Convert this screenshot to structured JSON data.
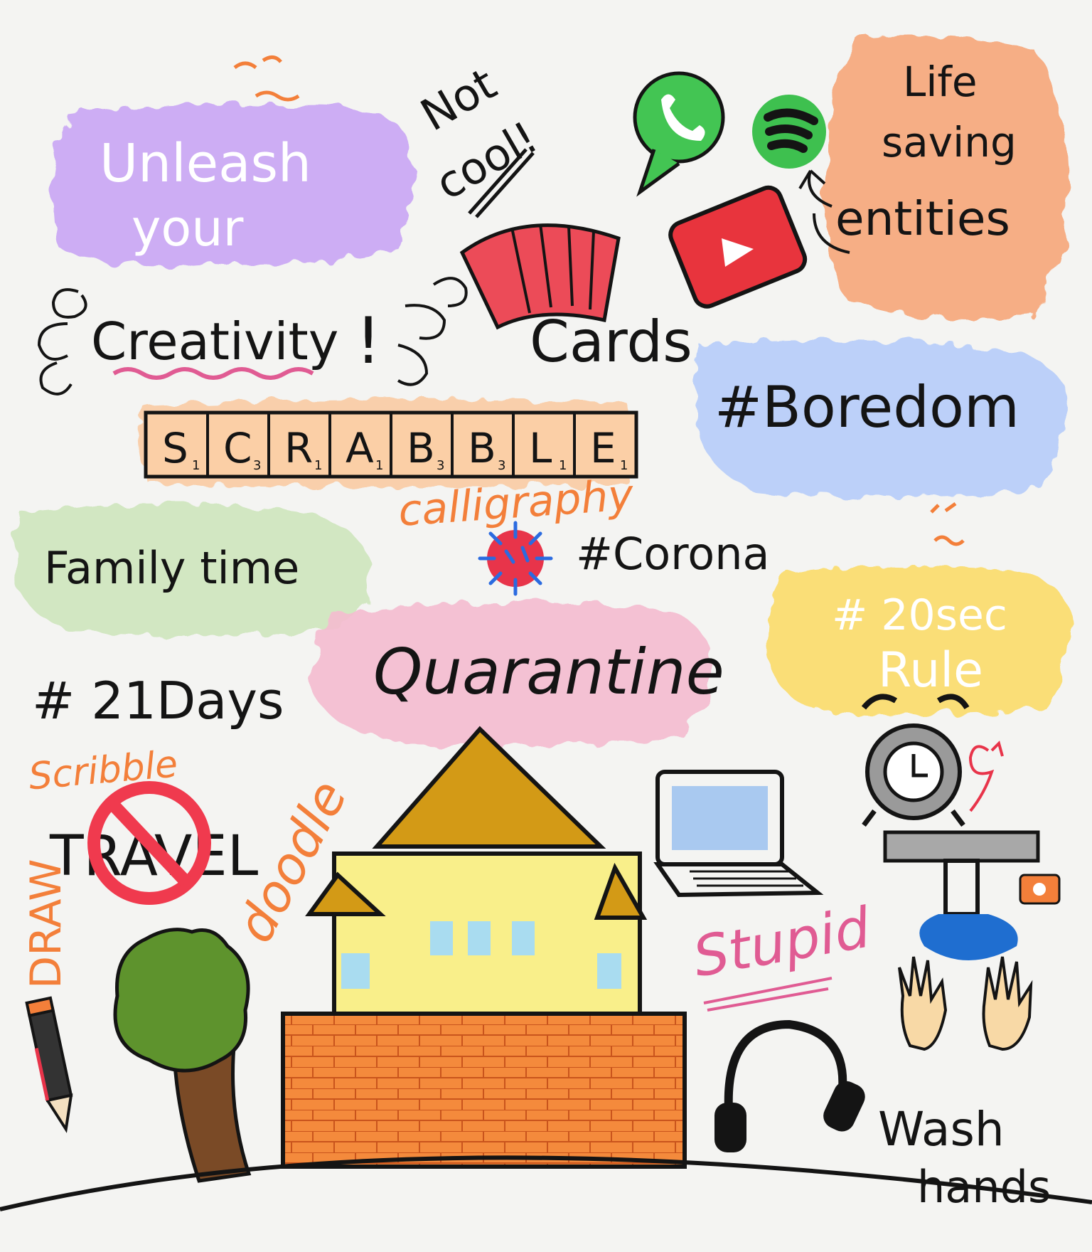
{
  "blobs": {
    "purple": "#c9a6f5",
    "orange": "#f7a77a",
    "blue": "#b6cdfa",
    "green": "#cfe6bd",
    "pink": "#f5bcd0",
    "yellow": "#fbdc6b"
  },
  "texts": {
    "unleash": "Unleash",
    "your": "your",
    "creativity": "Creativity",
    "exclaim": "!",
    "not": "Not",
    "cool": "cool!",
    "cards": "Cards",
    "life": "Life",
    "saving": "saving",
    "entities": "entities",
    "boredom": "#Boredom",
    "calligraphy": "calligraphy",
    "corona": "#Corona",
    "family": "Family time",
    "quarantine": "Quarantine",
    "sec20": "# 20sec",
    "rule": "Rule",
    "days21": "# 21Days",
    "scribble": "Scribble",
    "travel": "TRAVEL",
    "draw": "DRAW",
    "doodle": "doodle",
    "stupid": "Stupid",
    "wash": "Wash",
    "hands": "hands"
  },
  "scrabble": {
    "tiles": [
      {
        "letter": "S",
        "score": "1"
      },
      {
        "letter": "C",
        "score": "3"
      },
      {
        "letter": "R",
        "score": "1"
      },
      {
        "letter": "A",
        "score": "1"
      },
      {
        "letter": "B",
        "score": "3"
      },
      {
        "letter": "B",
        "score": "3"
      },
      {
        "letter": "L",
        "score": "1"
      },
      {
        "letter": "E",
        "score": "1"
      }
    ]
  },
  "icons": [
    "whatsapp-icon",
    "spotify-icon",
    "youtube-icon",
    "virus-icon",
    "alarm-clock-icon",
    "laptop-icon",
    "headphones-icon",
    "pencil-icon",
    "no-entry-icon",
    "tap-icon",
    "soap-icon",
    "house-icon",
    "tree-icon",
    "playing-cards-icon"
  ],
  "colors": {
    "ink": "#141414",
    "accent_orange": "#f37f3a",
    "accent_pink": "#e05b93",
    "brick": "#f48a3c",
    "roof": "#d39a16",
    "house_wall": "#f9ef8a",
    "window": "#a9dcf0",
    "whatsapp_green": "#43c553",
    "youtube_red": "#e8343d"
  }
}
